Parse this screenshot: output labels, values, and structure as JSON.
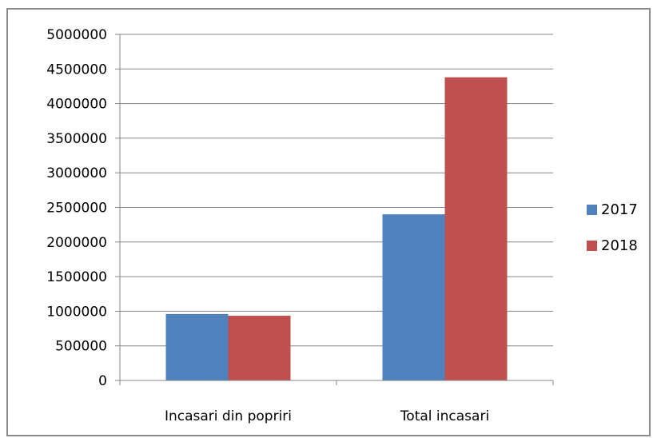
{
  "chart_data": {
    "type": "bar",
    "title": "",
    "xlabel": "",
    "ylabel": "",
    "categories": [
      "Incasari din popriri",
      "Total incasari"
    ],
    "series": [
      {
        "name": "2017",
        "color": "#4f81bd",
        "values": [
          960000,
          2400000
        ]
      },
      {
        "name": "2018",
        "color": "#c0504d",
        "values": [
          935000,
          4380000
        ]
      }
    ],
    "ylim": [
      0,
      5000000
    ],
    "yticks": [
      "0",
      "500000",
      "1000000",
      "1500000",
      "2000000",
      "2500000",
      "3000000",
      "3500000",
      "4000000",
      "4500000",
      "5000000"
    ],
    "grid": true,
    "legend_position": "right"
  }
}
